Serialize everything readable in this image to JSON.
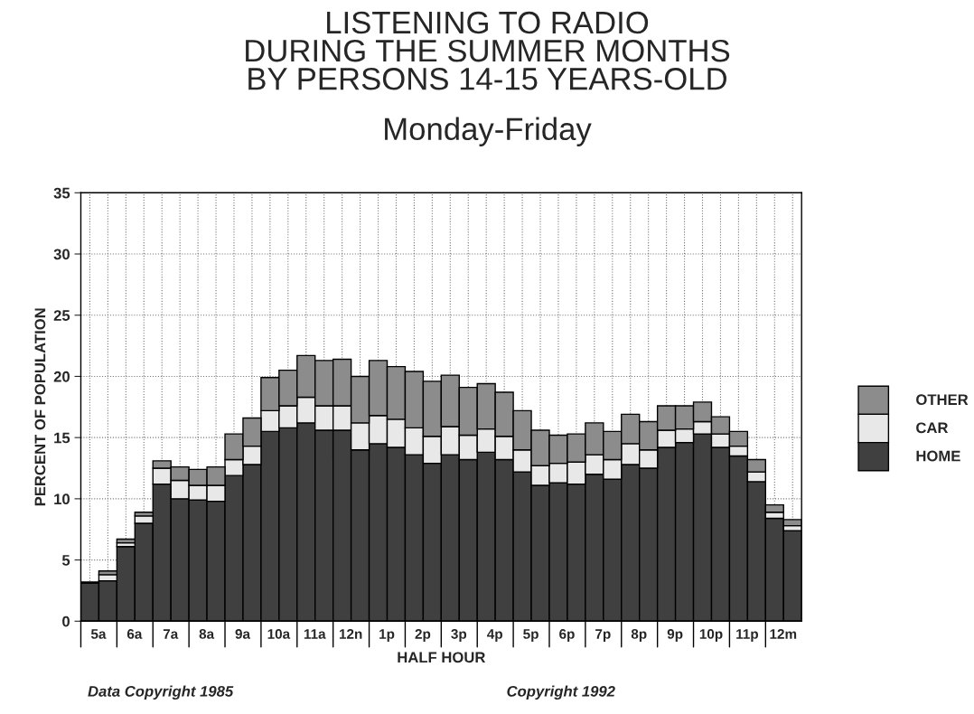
{
  "chart_data": {
    "type": "bar",
    "title": "LISTENING TO RADIO\nDURING THE SUMMER MONTHS\nBY PERSONS 14-15 YEARS-OLD",
    "subtitle": "Monday-Friday",
    "xlabel": "HALF HOUR",
    "ylabel": "PERCENT OF POPULATION",
    "categories": [
      "5a",
      null,
      "6a",
      null,
      "7a",
      null,
      "8a",
      null,
      "9a",
      null,
      "10a",
      null,
      "11a",
      null,
      "12n",
      null,
      "1p",
      null,
      "2p",
      null,
      "3p",
      null,
      "4p",
      null,
      "5p",
      null,
      "6p",
      null,
      "7p",
      null,
      "8p",
      null,
      "9p",
      null,
      "10p",
      null,
      "11p",
      null,
      "12m",
      null
    ],
    "stacked": true,
    "series": [
      {
        "name": "HOME",
        "color": "#404040",
        "values": [
          3.1,
          3.3,
          6.1,
          8.0,
          11.2,
          10.0,
          9.9,
          9.8,
          11.9,
          12.8,
          15.5,
          15.8,
          16.2,
          15.6,
          15.6,
          14.0,
          14.5,
          14.2,
          13.6,
          12.9,
          13.6,
          13.2,
          13.8,
          13.2,
          12.2,
          11.1,
          11.3,
          11.2,
          12.0,
          11.6,
          12.8,
          12.5,
          14.2,
          14.6,
          15.3,
          14.2,
          13.5,
          11.4,
          8.4,
          7.4
        ]
      },
      {
        "name": "CAR",
        "color": "#e8e8e8",
        "values": [
          null,
          0.5,
          0.3,
          0.6,
          1.3,
          1.5,
          1.2,
          1.3,
          1.3,
          1.5,
          1.7,
          1.8,
          2.1,
          2.0,
          2.0,
          2.2,
          2.3,
          2.3,
          2.2,
          2.2,
          2.3,
          2.0,
          1.9,
          1.9,
          1.8,
          1.6,
          1.6,
          1.8,
          1.6,
          1.6,
          1.7,
          1.5,
          1.4,
          1.1,
          1.0,
          1.1,
          0.8,
          0.8,
          0.5,
          0.4
        ]
      },
      {
        "name": "OTHER",
        "color": "#8c8c8c",
        "values": [
          0.1,
          0.3,
          0.3,
          0.3,
          0.6,
          1.1,
          1.3,
          1.5,
          2.1,
          2.3,
          2.7,
          2.9,
          3.4,
          3.7,
          3.8,
          3.8,
          4.5,
          4.3,
          4.6,
          4.5,
          4.2,
          3.9,
          3.7,
          3.6,
          3.2,
          2.9,
          2.3,
          2.3,
          2.6,
          2.3,
          2.4,
          2.3,
          2.0,
          1.9,
          1.6,
          1.4,
          1.2,
          1.0,
          0.6,
          0.5
        ]
      }
    ],
    "ylim": [
      0,
      35
    ],
    "yticks": [
      0,
      5,
      10,
      15,
      20,
      25,
      30,
      35
    ],
    "grid": true,
    "legend": "right",
    "annotations": [
      "Data Copyright 1985",
      "Copyright 1992"
    ]
  }
}
